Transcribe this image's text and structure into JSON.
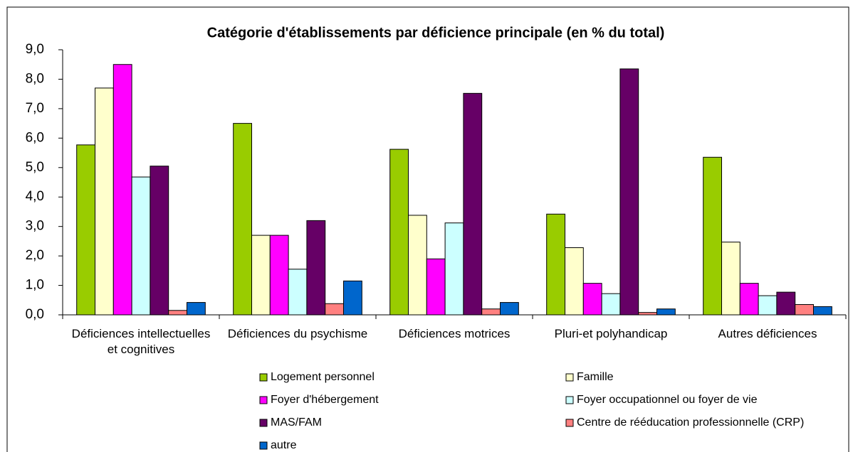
{
  "chart_data": {
    "type": "bar",
    "title": "Catégorie d'établissements par déficience principale (en % du total)",
    "categories": [
      "Déficiences intellectuelles et cognitives",
      "Déficiences du psychisme",
      "Déficiences motrices",
      "Pluri-et polyhandicap",
      "Autres déficiences"
    ],
    "series": [
      {
        "name": "Logement personnel",
        "color": "#99cc00",
        "values": [
          5.77,
          6.5,
          5.62,
          3.42,
          5.35
        ]
      },
      {
        "name": "Famille",
        "color": "#ffffcc",
        "values": [
          7.7,
          2.7,
          3.38,
          2.28,
          2.47
        ]
      },
      {
        "name": "Foyer d'hébergement",
        "color": "#ff00ff",
        "values": [
          8.5,
          2.7,
          1.9,
          1.07,
          1.07
        ]
      },
      {
        "name": "Foyer occupationnel ou foyer de vie",
        "color": "#ccffff",
        "values": [
          4.68,
          1.55,
          3.12,
          0.72,
          0.65
        ]
      },
      {
        "name": "MAS/FAM",
        "color": "#660066",
        "values": [
          5.05,
          3.2,
          7.52,
          8.35,
          0.77
        ]
      },
      {
        "name": "Centre de rééducation professionnelle (CRP)",
        "color": "#ff8080",
        "values": [
          0.15,
          0.38,
          0.2,
          0.08,
          0.35
        ]
      },
      {
        "name": "autre",
        "color": "#0066cc",
        "values": [
          0.42,
          1.15,
          0.42,
          0.2,
          0.28
        ]
      }
    ],
    "ylim": [
      0,
      9
    ],
    "yticks": [
      {
        "value": 0,
        "label": "0,0"
      },
      {
        "value": 1,
        "label": "1,0"
      },
      {
        "value": 2,
        "label": "2,0"
      },
      {
        "value": 3,
        "label": "3,0"
      },
      {
        "value": 4,
        "label": "4,0"
      },
      {
        "value": 5,
        "label": "5,0"
      },
      {
        "value": 6,
        "label": "6,0"
      },
      {
        "value": 7,
        "label": "7,0"
      },
      {
        "value": 8,
        "label": "8,0"
      },
      {
        "value": 9,
        "label": "9,0"
      }
    ]
  }
}
